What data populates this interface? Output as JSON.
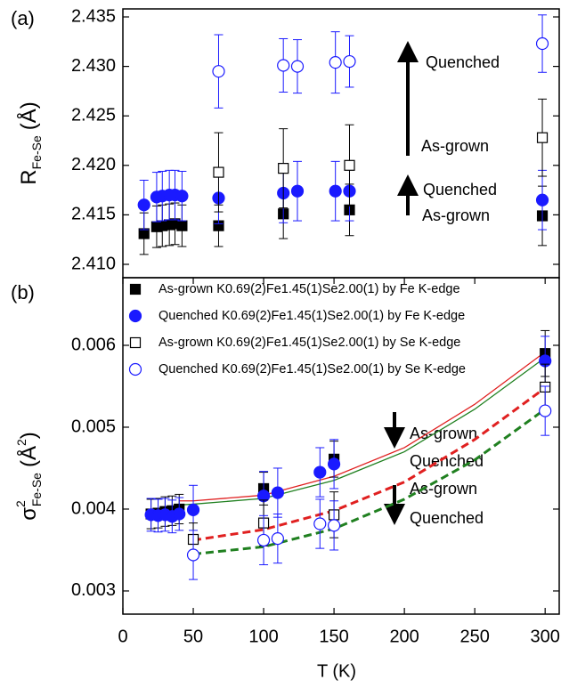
{
  "chart_data": [
    {
      "type": "scatter",
      "panel_label": "(a)",
      "ylabel_parts": [
        "R",
        "Fe-Se",
        "(Å)"
      ],
      "xlim": [
        0,
        310
      ],
      "ylim": [
        2.40865,
        2.43581
      ],
      "yticks": [
        {
          "value": 2.41,
          "label": "2.410"
        },
        2.415,
        {
          "value": 2.42,
          "label": "2.420"
        },
        2.425,
        {
          "value": 2.43,
          "label": "2.430"
        },
        2.435
      ],
      "annotations": [
        "Quenched",
        "As-grown",
        "Quenched",
        "As-grown"
      ],
      "series": [
        {
          "color": "#000000",
          "marker": "square",
          "filled": true,
          "x": [
            15,
            24,
            28,
            33,
            37,
            42,
            68,
            114,
            161,
            298
          ],
          "values": [
            2.4131,
            2.4138,
            2.4139,
            2.414,
            2.4141,
            2.4139,
            2.4139,
            2.4151,
            2.4155,
            2.4149
          ],
          "errors": [
            0.0021,
            0.0021,
            0.0021,
            0.0021,
            0.0021,
            0.0021,
            0.0021,
            0.0025,
            0.0026,
            0.003
          ]
        },
        {
          "color": "#1a1aff",
          "marker": "circle",
          "filled": true,
          "x": [
            15,
            24,
            28,
            33,
            37,
            42,
            68,
            114,
            124,
            151,
            161,
            298
          ],
          "values": [
            2.416,
            2.4168,
            2.4169,
            2.417,
            2.417,
            2.4169,
            2.4167,
            2.4172,
            2.4174,
            2.4174,
            2.4174,
            2.4165
          ],
          "errors": [
            0.0025,
            0.0025,
            0.0025,
            0.0025,
            0.0025,
            0.0025,
            0.0026,
            0.003,
            0.003,
            0.003,
            0.003,
            0.003
          ]
        },
        {
          "color": "#000000",
          "marker": "square",
          "filled": false,
          "x": [
            68,
            114,
            161,
            298
          ],
          "values": [
            2.4193,
            2.4197,
            2.42,
            2.4228
          ],
          "errors": [
            0.004,
            0.004,
            0.0041,
            0.0039
          ]
        },
        {
          "color": "#1a1aff",
          "marker": "circle",
          "filled": false,
          "x": [
            68,
            114,
            124,
            151,
            161,
            298
          ],
          "values": [
            2.4295,
            2.4301,
            2.43,
            2.4304,
            2.4305,
            2.4323
          ],
          "errors": [
            0.0037,
            0.0027,
            0.0027,
            0.0031,
            0.0026,
            0.0029
          ]
        }
      ]
    },
    {
      "type": "scatter",
      "panel_label": "(b)",
      "ylabel_parts": [
        "σ",
        "2",
        "Fe-Se",
        "(Å",
        "2",
        ")"
      ],
      "xlabel": "T (K)",
      "xlim": [
        0,
        310
      ],
      "xticks": [
        0,
        50,
        100,
        150,
        200,
        250,
        300
      ],
      "ylim": [
        0.002717,
        0.006826
      ],
      "yticks": [
        0.003,
        0.004,
        0.005,
        0.006
      ],
      "annotations": [
        "As-grown",
        "Quenched",
        "As-grown",
        "Quenched"
      ],
      "series": [
        {
          "name": "As-grown K0.69(2)Fe1.45(1)Se2.00(1) by Fe K-edge",
          "color": "#000000",
          "marker": "square",
          "filled": true,
          "x": [
            20,
            25,
            30,
            35,
            40,
            100,
            150,
            300
          ],
          "values": [
            0.00394,
            0.00395,
            0.00397,
            0.00398,
            0.004,
            0.00425,
            0.00461,
            0.0059
          ],
          "errors": [
            0.00018,
            0.00018,
            0.00018,
            0.00018,
            0.00018,
            0.0002,
            0.00022,
            0.00028
          ]
        },
        {
          "name": "Quenched K0.69(2)Fe1.45(1)Se2.00(1) by Fe K-edge",
          "color": "#1a1aff",
          "marker": "circle",
          "filled": true,
          "x": [
            20,
            25,
            30,
            35,
            40,
            50,
            100,
            110,
            140,
            150,
            300
          ],
          "values": [
            0.00393,
            0.00392,
            0.00393,
            0.00391,
            0.00394,
            0.00399,
            0.00416,
            0.0042,
            0.00445,
            0.00455,
            0.00581
          ],
          "errors": [
            0.0002,
            0.0002,
            0.0002,
            0.0002,
            0.0002,
            0.0003,
            0.0003,
            0.0003,
            0.0003,
            0.0003,
            0.0003
          ]
        },
        {
          "name": "As-grown K0.69(2)Fe1.45(1)Se2.00(1) by Se K-edge",
          "color": "#000000",
          "marker": "square",
          "filled": false,
          "x": [
            50,
            100,
            150,
            300
          ],
          "values": [
            0.00363,
            0.00383,
            0.00393,
            0.00549
          ],
          "errors": [
            0.0002,
            0.00028,
            0.00028,
            0.00028
          ]
        },
        {
          "name": "Quenched K0.69(2)Fe1.45(1)Se2.00(1) by Se K-edge",
          "color": "#1a1aff",
          "marker": "circle",
          "filled": false,
          "x": [
            50,
            100,
            110,
            140,
            150,
            300
          ],
          "values": [
            0.00344,
            0.00362,
            0.00364,
            0.00382,
            0.0038,
            0.0052
          ],
          "errors": [
            0.0003,
            0.0003,
            0.0003,
            0.0003,
            0.0003,
            0.0003
          ]
        }
      ],
      "fits": [
        {
          "color": "#e02020",
          "dashed": false,
          "x": [
            40,
            50,
            100,
            150,
            200,
            250,
            300
          ],
          "values": [
            0.0041,
            0.0041,
            0.00417,
            0.0044,
            0.00475,
            0.00528,
            0.00592
          ]
        },
        {
          "color": "#208020",
          "dashed": false,
          "x": [
            40,
            50,
            100,
            150,
            200,
            250,
            300
          ],
          "values": [
            0.00405,
            0.00406,
            0.00413,
            0.00435,
            0.0047,
            0.00522,
            0.00585
          ]
        },
        {
          "color": "#e02020",
          "dashed": true,
          "x": [
            50,
            100,
            150,
            200,
            250,
            300
          ],
          "values": [
            0.00362,
            0.00375,
            0.00398,
            0.00433,
            0.00485,
            0.00548
          ]
        },
        {
          "color": "#208020",
          "dashed": true,
          "x": [
            50,
            100,
            150,
            200,
            250,
            300
          ],
          "values": [
            0.00345,
            0.00354,
            0.00376,
            0.00412,
            0.0046,
            0.00522
          ]
        }
      ]
    }
  ]
}
